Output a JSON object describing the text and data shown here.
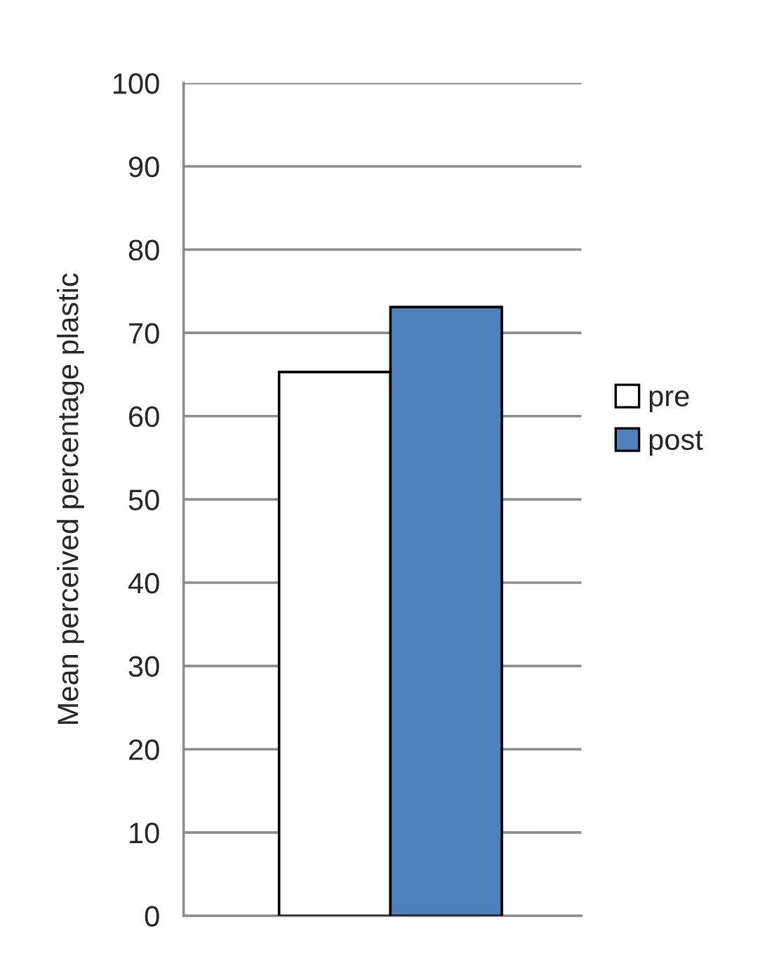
{
  "chart_data": {
    "type": "bar",
    "ylabel": "Mean perceived percentage plastic",
    "categories": [
      null
    ],
    "series": [
      {
        "name": "pre",
        "color": "#ffffff",
        "values": [
          65.3
        ]
      },
      {
        "name": "post",
        "color": "#4f81bd",
        "values": [
          73.1
        ]
      }
    ],
    "ylim": [
      0,
      100
    ],
    "yticks": [
      0,
      10,
      20,
      30,
      40,
      50,
      60,
      70,
      80,
      90,
      100
    ],
    "grid": "y",
    "legend": "right"
  }
}
